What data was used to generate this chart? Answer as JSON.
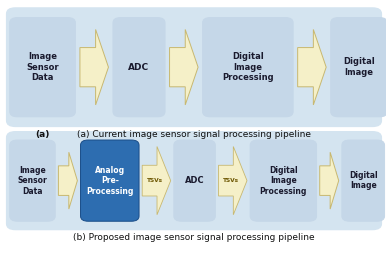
{
  "fig_width": 3.88,
  "fig_height": 2.62,
  "dpi": 100,
  "bg_color": "#ffffff",
  "box_light": "#c5d7e8",
  "box_dark": "#2d6db0",
  "arrow_fill": "#f5f0c8",
  "arrow_edge": "#c8b870",
  "panel_bg": "#d4e4f0",
  "caption_a_bold": "(a)",
  "caption_a_rest": " Current image sensor signal processing pipeline",
  "caption_b_bold": "(b)",
  "caption_b_rest": " Proposed image sensor signal processing pipeline",
  "text_dark": "#111111",
  "text_light": "#ffffff",
  "text_box": "#1a1a2e"
}
